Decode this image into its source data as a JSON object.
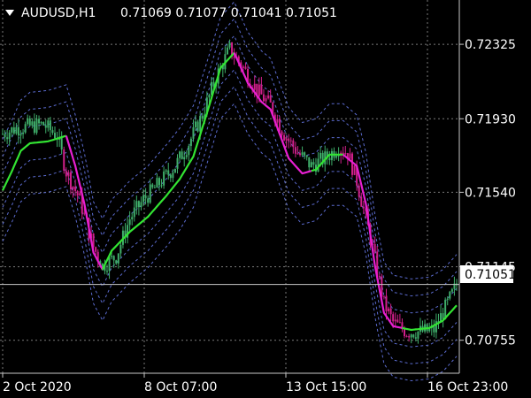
{
  "header": {
    "symbol": "AUDUSD,H1",
    "ohlc": "0.71069 0.71077 0.71041 0.71051",
    "menu_icon": "triangle-down-icon"
  },
  "price_label": "0.71051",
  "colors": {
    "background": "#000000",
    "grid": "#7a7a7a",
    "band": "#5b6bcf",
    "candle_up": "#3fae6a",
    "candle_down": "#d01f8a",
    "ma_up": "#33e433",
    "ma_down": "#e81fd2",
    "price_line": "#c8c8c8",
    "text": "#ffffff"
  },
  "chart_data": {
    "type": "line",
    "y_ticks": [
      "0.72325",
      "0.71930",
      "0.71540",
      "0.71145",
      "0.70755"
    ],
    "x_ticks": [
      "2 Oct 2020",
      "8 Oct 07:00",
      "13 Oct 15:00",
      "16 Oct 23:00"
    ],
    "current_price": 0.71051,
    "ylim": [
      0.7058,
      0.7256
    ],
    "price_path": [
      [
        0,
        0.7185
      ],
      [
        6,
        0.7188
      ],
      [
        12,
        0.7189
      ],
      [
        18,
        0.719
      ],
      [
        24,
        0.7184
      ],
      [
        28,
        0.7165
      ],
      [
        34,
        0.715
      ],
      [
        40,
        0.7125
      ],
      [
        44,
        0.7115
      ],
      [
        50,
        0.712
      ],
      [
        56,
        0.714
      ],
      [
        62,
        0.715
      ],
      [
        70,
        0.716
      ],
      [
        76,
        0.7168
      ],
      [
        82,
        0.718
      ],
      [
        88,
        0.7195
      ],
      [
        94,
        0.7215
      ],
      [
        100,
        0.723
      ],
      [
        106,
        0.722
      ],
      [
        112,
        0.7208
      ],
      [
        118,
        0.72
      ],
      [
        124,
        0.7185
      ],
      [
        130,
        0.7175
      ],
      [
        136,
        0.7168
      ],
      [
        142,
        0.7172
      ],
      [
        148,
        0.7178
      ],
      [
        152,
        0.7175
      ],
      [
        156,
        0.716
      ],
      [
        162,
        0.713
      ],
      [
        168,
        0.7095
      ],
      [
        172,
        0.7085
      ],
      [
        178,
        0.708
      ],
      [
        184,
        0.708
      ],
      [
        190,
        0.7081
      ],
      [
        196,
        0.7095
      ],
      [
        200,
        0.7105
      ]
    ],
    "ma_path": [
      [
        0,
        0.7155
      ],
      [
        4,
        0.7165
      ],
      [
        8,
        0.7176
      ],
      [
        12,
        0.718
      ],
      [
        20,
        0.7181
      ],
      [
        28,
        0.7184
      ],
      [
        32,
        0.7168
      ],
      [
        36,
        0.7148
      ],
      [
        40,
        0.7122
      ],
      [
        44,
        0.7113
      ],
      [
        48,
        0.7123
      ],
      [
        56,
        0.7133
      ],
      [
        64,
        0.7141
      ],
      [
        72,
        0.7152
      ],
      [
        78,
        0.7161
      ],
      [
        84,
        0.7173
      ],
      [
        90,
        0.7196
      ],
      [
        96,
        0.722
      ],
      [
        102,
        0.7228
      ],
      [
        108,
        0.7212
      ],
      [
        114,
        0.7202
      ],
      [
        118,
        0.7198
      ],
      [
        122,
        0.7185
      ],
      [
        126,
        0.7172
      ],
      [
        132,
        0.7164
      ],
      [
        138,
        0.7166
      ],
      [
        144,
        0.7174
      ],
      [
        150,
        0.7174
      ],
      [
        156,
        0.7168
      ],
      [
        160,
        0.7148
      ],
      [
        164,
        0.7115
      ],
      [
        168,
        0.709
      ],
      [
        172,
        0.7083
      ],
      [
        180,
        0.7081
      ],
      [
        188,
        0.7082
      ],
      [
        194,
        0.7086
      ],
      [
        200,
        0.7094
      ]
    ],
    "ma_segments": [
      {
        "from": 0,
        "to": 28,
        "trend": "up"
      },
      {
        "from": 28,
        "to": 44,
        "trend": "down"
      },
      {
        "from": 44,
        "to": 102,
        "trend": "up"
      },
      {
        "from": 102,
        "to": 136,
        "trend": "down"
      },
      {
        "from": 136,
        "to": 150,
        "trend": "up"
      },
      {
        "from": 150,
        "to": 176,
        "trend": "down"
      },
      {
        "from": 176,
        "to": 200,
        "trend": "up"
      }
    ],
    "band_offsets": [
      -0.0027,
      -0.0018,
      -0.0009,
      0.0009,
      0.0018,
      0.0027
    ]
  }
}
